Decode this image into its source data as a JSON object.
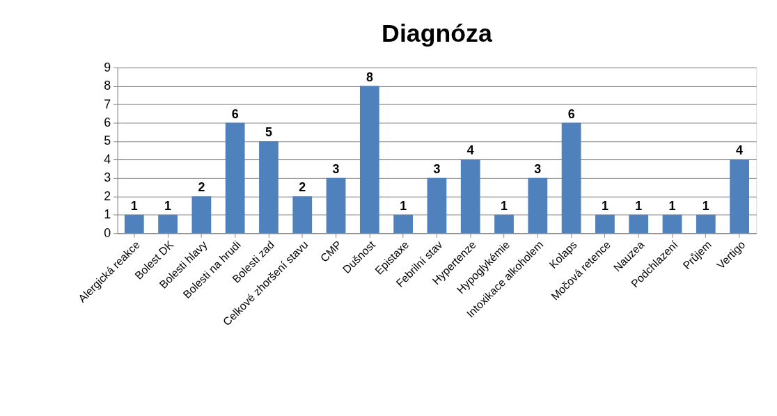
{
  "chart_data": {
    "type": "bar",
    "title": "Diagnóza",
    "categories": [
      "Alergická reakce",
      "Bolest DK",
      "Bolesti hlavy",
      "Bolesti na hrudi",
      "Bolesti zad",
      "Celkové zhoršení stavu",
      "CMP",
      "Dušnost",
      "Epistaxe",
      "Febrilní stav",
      "Hypertenze",
      "Hypoglykémie",
      "Intoxikace alkoholem",
      "Kolaps",
      "Močová retence",
      "Nauzea",
      "Podchlazení",
      "Průjem",
      "Vertigo"
    ],
    "values": [
      1,
      1,
      2,
      6,
      5,
      2,
      3,
      8,
      1,
      3,
      4,
      1,
      3,
      6,
      1,
      1,
      1,
      1,
      4
    ],
    "color": "#4f81bd",
    "ylim": [
      0,
      9
    ],
    "yticks": [
      0,
      1,
      2,
      3,
      4,
      5,
      6,
      7,
      8,
      9
    ],
    "grid": "y",
    "data_labels": true
  }
}
